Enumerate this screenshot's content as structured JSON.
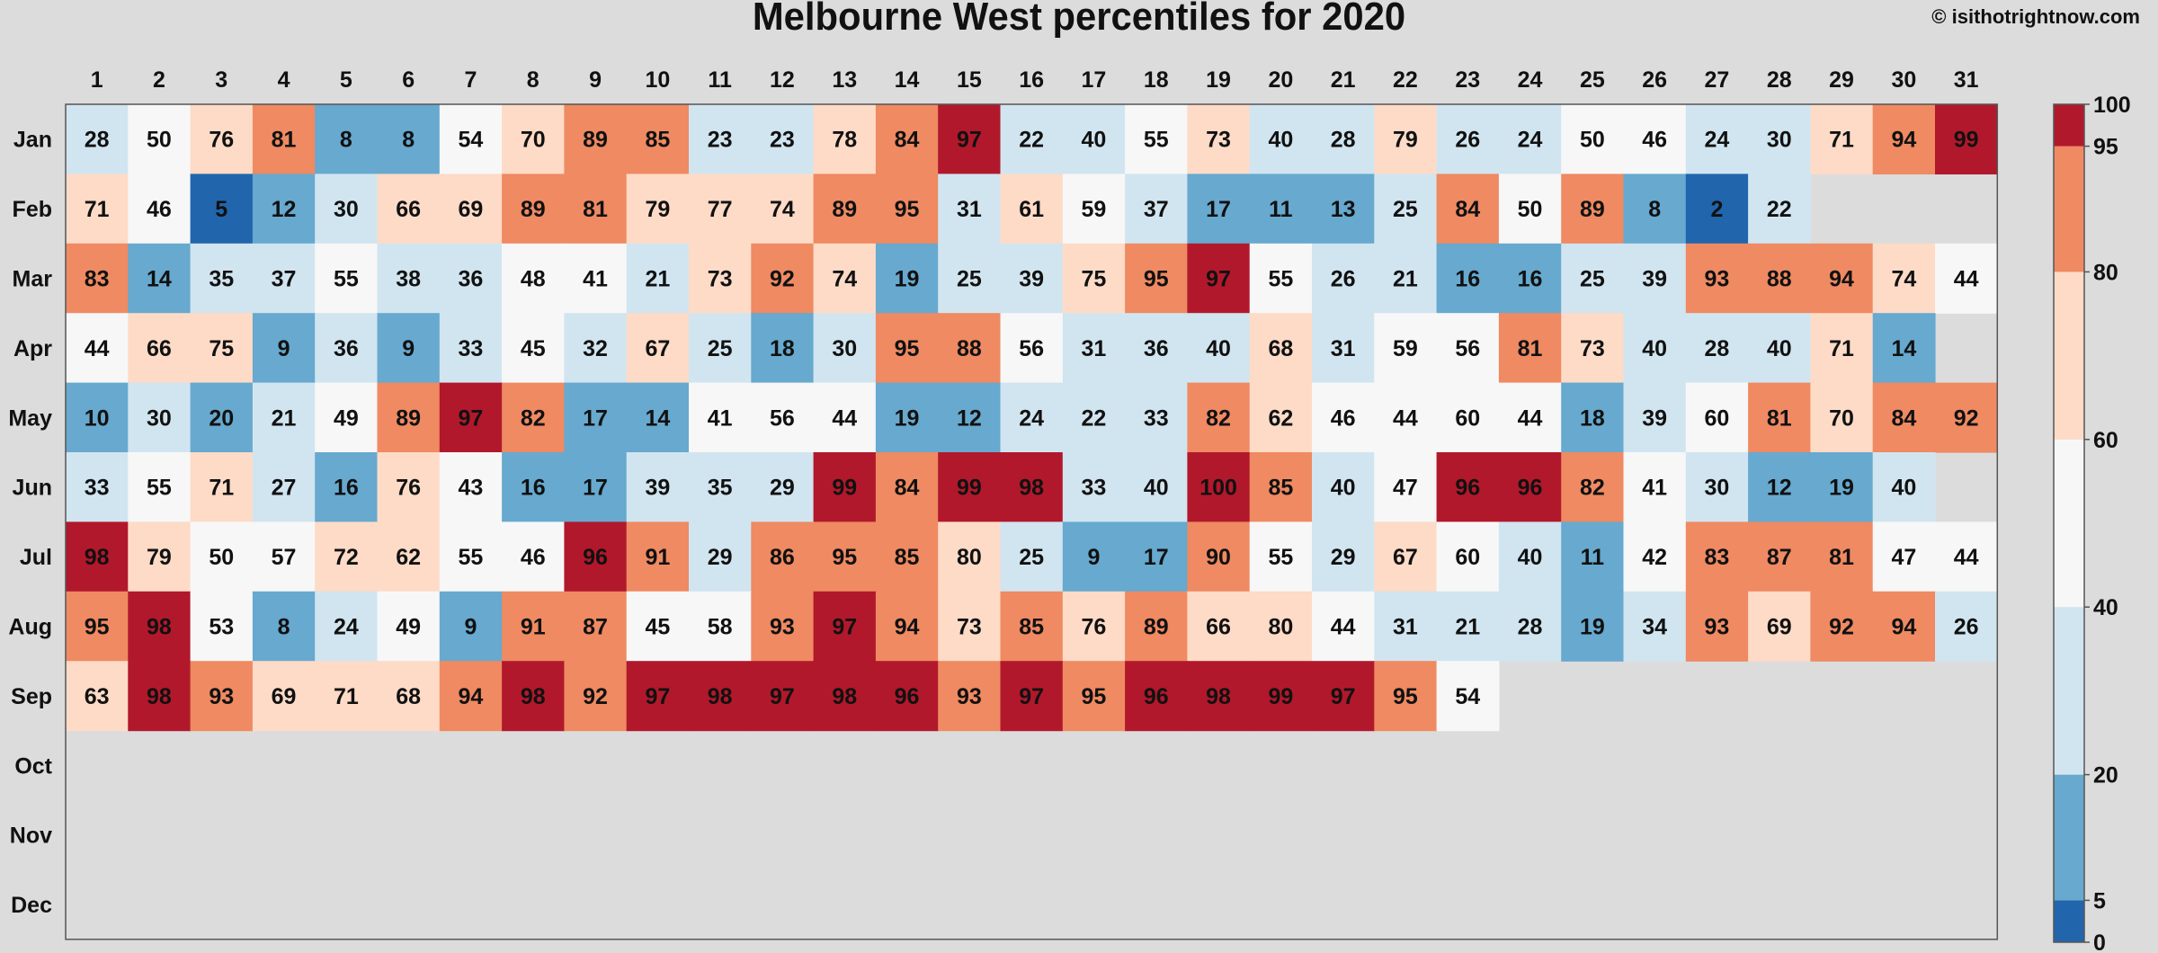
{
  "chart_data": {
    "type": "heatmap",
    "title": "Melbourne West percentiles for 2020",
    "credit": "© isithotrightnow.com",
    "x_categories": [
      "1",
      "2",
      "3",
      "4",
      "5",
      "6",
      "7",
      "8",
      "9",
      "10",
      "11",
      "12",
      "13",
      "14",
      "15",
      "16",
      "17",
      "18",
      "19",
      "20",
      "21",
      "22",
      "23",
      "24",
      "25",
      "26",
      "27",
      "28",
      "29",
      "30",
      "31"
    ],
    "y_categories": [
      "Jan",
      "Feb",
      "Mar",
      "Apr",
      "May",
      "Jun",
      "Jul",
      "Aug",
      "Sep",
      "Oct",
      "Nov",
      "Dec"
    ],
    "values": [
      [
        28,
        50,
        76,
        81,
        8,
        8,
        54,
        70,
        89,
        85,
        23,
        23,
        78,
        84,
        97,
        22,
        40,
        55,
        73,
        40,
        28,
        79,
        26,
        24,
        50,
        46,
        24,
        30,
        71,
        94,
        99
      ],
      [
        71,
        46,
        5,
        12,
        30,
        66,
        69,
        89,
        81,
        79,
        77,
        74,
        89,
        95,
        31,
        61,
        59,
        37,
        17,
        11,
        13,
        25,
        84,
        50,
        89,
        8,
        2,
        22,
        null,
        null,
        null
      ],
      [
        83,
        14,
        35,
        37,
        55,
        38,
        36,
        48,
        41,
        21,
        73,
        92,
        74,
        19,
        25,
        39,
        75,
        95,
        97,
        55,
        26,
        21,
        16,
        16,
        25,
        39,
        93,
        88,
        94,
        74,
        44
      ],
      [
        44,
        66,
        75,
        9,
        36,
        9,
        33,
        45,
        32,
        67,
        25,
        18,
        30,
        95,
        88,
        56,
        31,
        36,
        40,
        68,
        31,
        59,
        56,
        81,
        73,
        40,
        28,
        40,
        71,
        14,
        null
      ],
      [
        10,
        30,
        20,
        21,
        49,
        89,
        97,
        82,
        17,
        14,
        41,
        56,
        44,
        19,
        12,
        24,
        22,
        33,
        82,
        62,
        46,
        44,
        60,
        44,
        18,
        39,
        60,
        81,
        70,
        84,
        92
      ],
      [
        33,
        55,
        71,
        27,
        16,
        76,
        43,
        16,
        17,
        39,
        35,
        29,
        99,
        84,
        99,
        98,
        33,
        40,
        100,
        85,
        40,
        47,
        96,
        96,
        82,
        41,
        30,
        12,
        19,
        40,
        null
      ],
      [
        98,
        79,
        50,
        57,
        72,
        62,
        55,
        46,
        96,
        91,
        29,
        86,
        95,
        85,
        80,
        25,
        9,
        17,
        90,
        55,
        29,
        67,
        60,
        40,
        11,
        42,
        83,
        87,
        81,
        47,
        44
      ],
      [
        95,
        98,
        53,
        8,
        24,
        49,
        9,
        91,
        87,
        45,
        58,
        93,
        97,
        94,
        73,
        85,
        76,
        89,
        66,
        80,
        44,
        31,
        21,
        28,
        19,
        34,
        93,
        69,
        92,
        94,
        26
      ],
      [
        63,
        98,
        93,
        69,
        71,
        68,
        94,
        98,
        92,
        97,
        98,
        97,
        98,
        96,
        93,
        97,
        95,
        96,
        98,
        99,
        97,
        95,
        54,
        null,
        null,
        null,
        null,
        null,
        null,
        null,
        null
      ],
      [
        null,
        null,
        null,
        null,
        null,
        null,
        null,
        null,
        null,
        null,
        null,
        null,
        null,
        null,
        null,
        null,
        null,
        null,
        null,
        null,
        null,
        null,
        null,
        null,
        null,
        null,
        null,
        null,
        null,
        null,
        null
      ],
      [
        null,
        null,
        null,
        null,
        null,
        null,
        null,
        null,
        null,
        null,
        null,
        null,
        null,
        null,
        null,
        null,
        null,
        null,
        null,
        null,
        null,
        null,
        null,
        null,
        null,
        null,
        null,
        null,
        null,
        null,
        null
      ],
      [
        null,
        null,
        null,
        null,
        null,
        null,
        null,
        null,
        null,
        null,
        null,
        null,
        null,
        null,
        null,
        null,
        null,
        null,
        null,
        null,
        null,
        null,
        null,
        null,
        null,
        null,
        null,
        null,
        null,
        null,
        null
      ]
    ],
    "color_scale": {
      "breaks": [
        0,
        5,
        20,
        40,
        60,
        80,
        95,
        100
      ],
      "colors": [
        "#2166ac",
        "#67a9cf",
        "#d1e5f0",
        "#f7f7f7",
        "#fddbc7",
        "#ef8a62",
        "#b2182b"
      ],
      "tick_labels": [
        "0",
        "5",
        "20",
        "40",
        "60",
        "80",
        "95",
        "100"
      ]
    },
    "background": "#dcdcdc",
    "grid": false,
    "legend": "colorbar-right"
  }
}
